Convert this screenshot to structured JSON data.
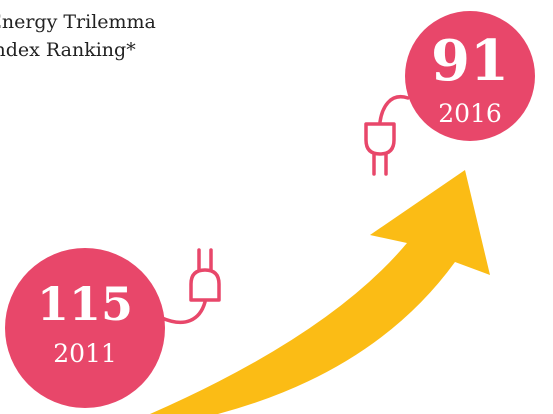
{
  "title": {
    "line1": "Energy Trilemma",
    "line2": "Index Ranking*"
  },
  "items": [
    {
      "rank": 115,
      "year": 2011
    },
    {
      "rank": 91,
      "year": 2016
    }
  ]
}
